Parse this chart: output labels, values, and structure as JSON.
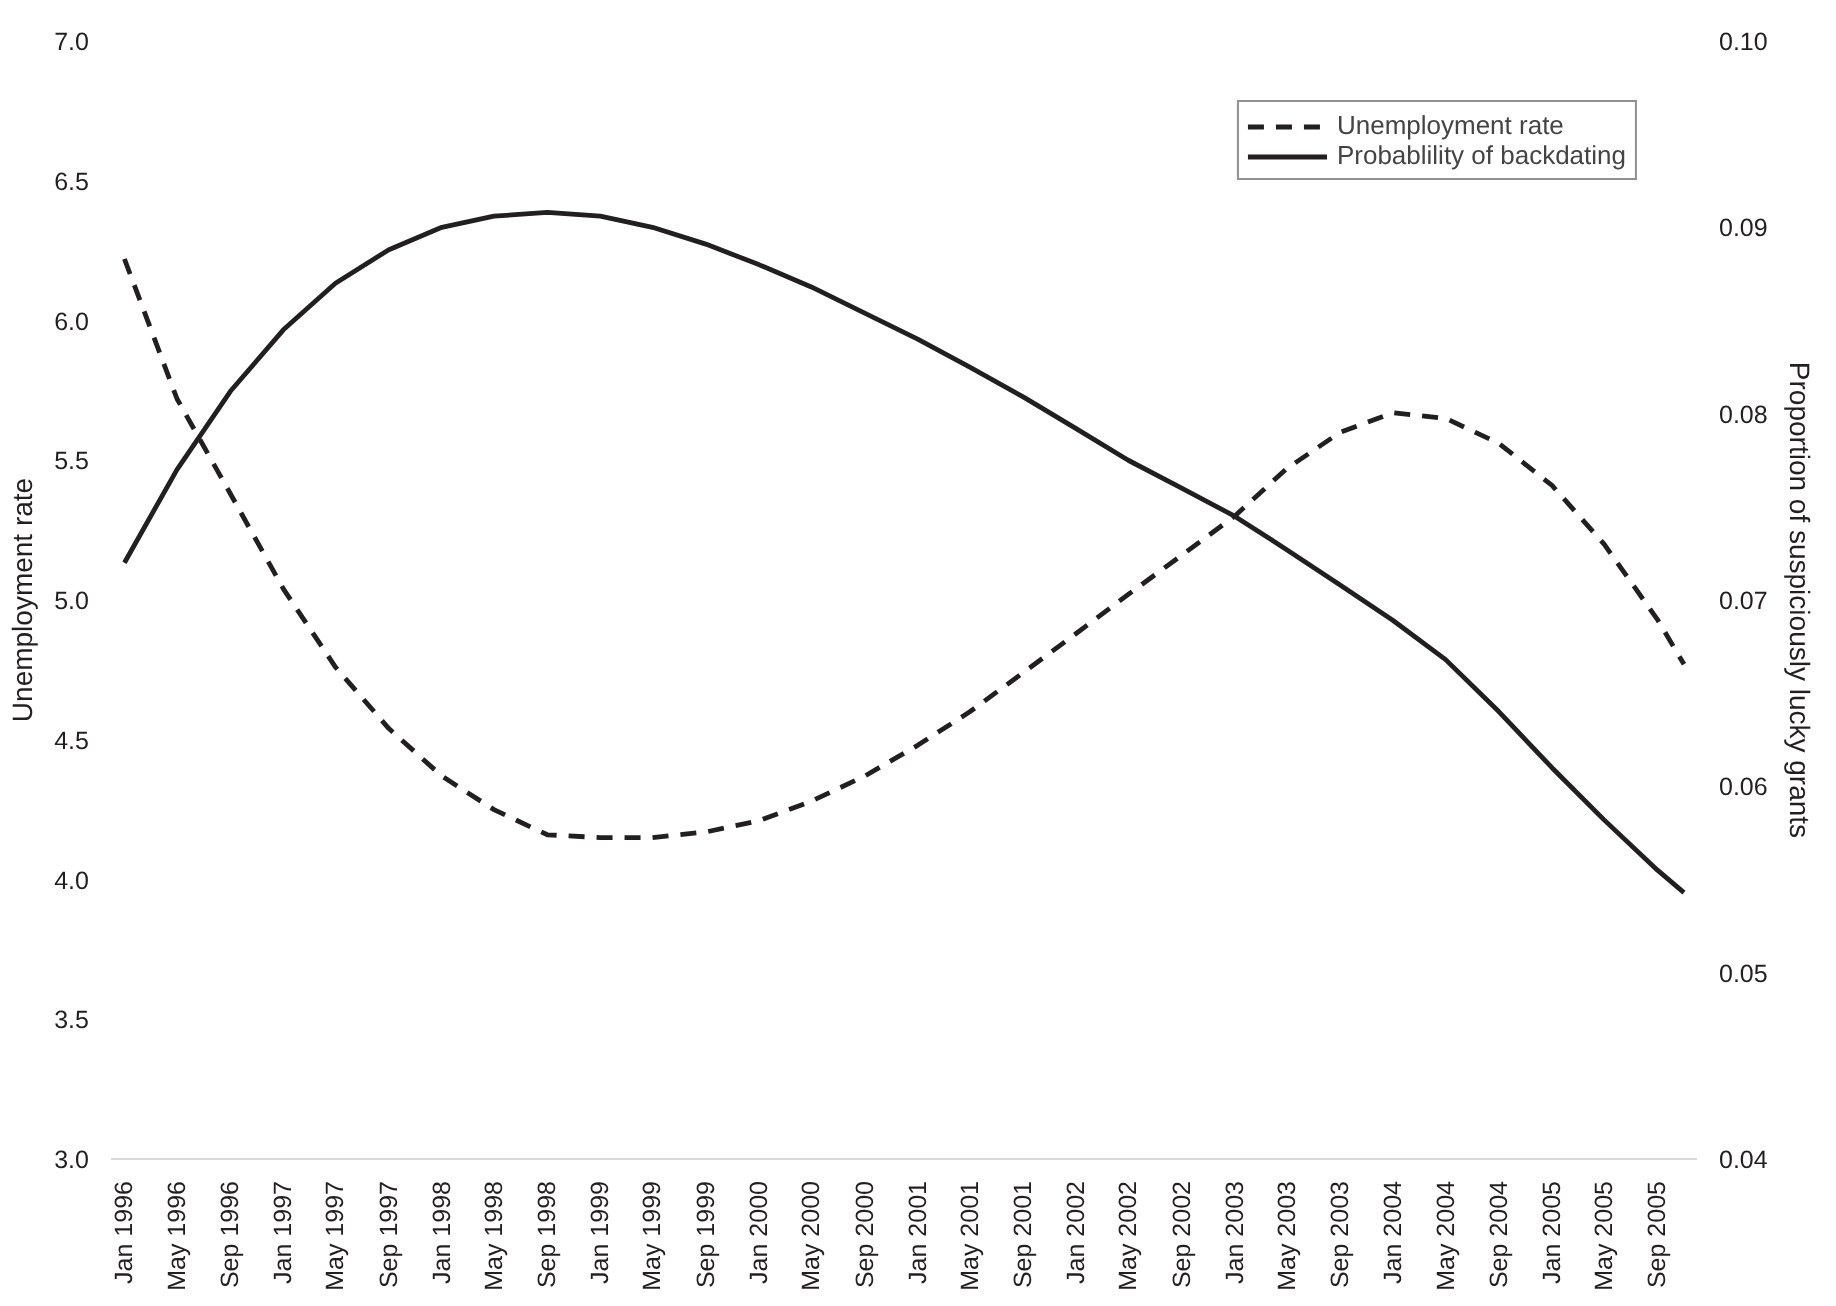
{
  "chart_data": {
    "type": "line",
    "ylabel": "Unemployment rate",
    "y2label": "Proportion of suspiciously lucky grants",
    "x": [
      "1996-01",
      "1996-05",
      "1996-09",
      "1997-01",
      "1997-05",
      "1997-09",
      "1998-01",
      "1998-05",
      "1998-09",
      "1999-01",
      "1999-05",
      "1999-09",
      "2000-01",
      "2000-05",
      "2000-09",
      "2001-01",
      "2001-05",
      "2001-09",
      "2002-01",
      "2002-05",
      "2002-09",
      "2003-01",
      "2003-05",
      "2003-09",
      "2004-01",
      "2004-05",
      "2004-09",
      "2005-01",
      "2005-05",
      "2005-09",
      "2005-11"
    ],
    "series": [
      {
        "name": "Unemployment rate",
        "color": "#231f20",
        "line_style": "dashed",
        "values": [
          6.22,
          5.72,
          5.38,
          5.04,
          4.76,
          4.54,
          4.37,
          4.25,
          4.16,
          4.15,
          4.15,
          4.17,
          4.21,
          4.28,
          4.37,
          4.48,
          4.6,
          4.74,
          4.88,
          5.02,
          5.16,
          5.3,
          5.47,
          5.6,
          5.67,
          5.65,
          5.56,
          5.41,
          5.2,
          4.93,
          4.77
        ]
      },
      {
        "name": "Probablility of backdating",
        "color": "#231f20",
        "line_style": "solid",
        "axis": "y2",
        "values": [
          0.072,
          0.077,
          0.0812,
          0.0845,
          0.087,
          0.0888,
          0.09,
          0.0906,
          0.0908,
          0.0906,
          0.09,
          0.0891,
          0.088,
          0.0868,
          0.0854,
          0.084,
          0.0825,
          0.0809,
          0.0792,
          0.0775,
          0.076,
          0.0745,
          0.0727,
          0.0708,
          0.0689,
          0.0668,
          0.064,
          0.061,
          0.0582,
          0.0555,
          0.0543
        ]
      }
    ],
    "xlim": [
      "1995-12",
      "2005-12"
    ],
    "xticks": [
      {
        "value": "1996-01",
        "label": "Jan 1996"
      },
      {
        "value": "1996-05",
        "label": "May 1996"
      },
      {
        "value": "1996-09",
        "label": "Sep 1996"
      },
      {
        "value": "1997-01",
        "label": "Jan 1997"
      },
      {
        "value": "1997-05",
        "label": "May 1997"
      },
      {
        "value": "1997-09",
        "label": "Sep 1997"
      },
      {
        "value": "1998-01",
        "label": "Jan 1998"
      },
      {
        "value": "1998-05",
        "label": "May 1998"
      },
      {
        "value": "1998-09",
        "label": "Sep 1998"
      },
      {
        "value": "1999-01",
        "label": "Jan 1999"
      },
      {
        "value": "1999-05",
        "label": "May 1999"
      },
      {
        "value": "1999-09",
        "label": "Sep 1999"
      },
      {
        "value": "2000-01",
        "label": "Jan 2000"
      },
      {
        "value": "2000-05",
        "label": "May 2000"
      },
      {
        "value": "2000-09",
        "label": "Sep 2000"
      },
      {
        "value": "2001-01",
        "label": "Jan 2001"
      },
      {
        "value": "2001-05",
        "label": "May 2001"
      },
      {
        "value": "2001-09",
        "label": "Sep 2001"
      },
      {
        "value": "2002-01",
        "label": "Jan 2002"
      },
      {
        "value": "2002-05",
        "label": "May 2002"
      },
      {
        "value": "2002-09",
        "label": "Sep 2002"
      },
      {
        "value": "2003-01",
        "label": "Jan 2003"
      },
      {
        "value": "2003-05",
        "label": "May 2003"
      },
      {
        "value": "2003-09",
        "label": "Sep 2003"
      },
      {
        "value": "2004-01",
        "label": "Jan 2004"
      },
      {
        "value": "2004-05",
        "label": "May 2004"
      },
      {
        "value": "2004-09",
        "label": "Sep 2004"
      },
      {
        "value": "2005-01",
        "label": "Jan 2005"
      },
      {
        "value": "2005-05",
        "label": "May 2005"
      },
      {
        "value": "2005-09",
        "label": "Sep 2005"
      }
    ],
    "ylim": [
      3.0,
      7.0
    ],
    "yticks": [
      {
        "value": 3.0,
        "label": "3.0"
      },
      {
        "value": 3.5,
        "label": "3.5"
      },
      {
        "value": 4.0,
        "label": "4.0"
      },
      {
        "value": 4.5,
        "label": "4.5"
      },
      {
        "value": 5.0,
        "label": "5.0"
      },
      {
        "value": 5.5,
        "label": "5.5"
      },
      {
        "value": 6.0,
        "label": "6.0"
      },
      {
        "value": 6.5,
        "label": "6.5"
      },
      {
        "value": 7.0,
        "label": "7.0"
      }
    ],
    "y2lim": [
      0.04,
      0.1
    ],
    "y2ticks": [
      0.04,
      0.05,
      0.06,
      0.07,
      0.08,
      0.09,
      {
        "value": 0.1,
        "label": "0.10"
      }
    ],
    "legend": "top right",
    "grid": false,
    "marker": "none"
  }
}
